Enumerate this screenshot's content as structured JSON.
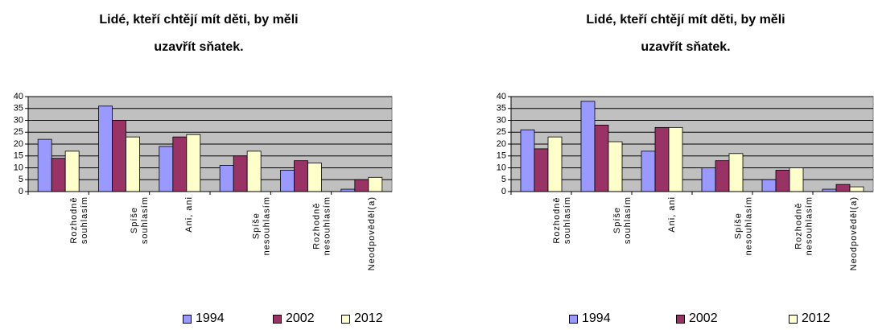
{
  "chart_data": [
    {
      "type": "bar",
      "title": "Lidé, kteří chtějí mít děti, by měli uzavřít sňatek.",
      "categories": [
        "Rozhodně\nsouhlasím",
        "Spíše\nsouhlasím",
        "Ani, ani",
        "Spíše\nnesouhlasím",
        "Rozhodně\nnesouhlasím",
        "Neodpověděl(a)"
      ],
      "series": [
        {
          "name": "1994",
          "color": "#9999ff",
          "values": [
            22,
            36,
            19,
            11,
            9,
            1
          ]
        },
        {
          "name": "2002",
          "color": "#993366",
          "values": [
            14,
            30,
            23,
            15,
            13,
            5
          ]
        },
        {
          "name": "2012",
          "color": "#ffffcc",
          "values": [
            17,
            23,
            24,
            17,
            12,
            6
          ]
        }
      ],
      "ylim": [
        0,
        40
      ],
      "yticks": [
        0,
        5,
        10,
        15,
        20,
        25,
        30,
        35,
        40
      ],
      "grid": true,
      "legend": "bottom"
    },
    {
      "type": "bar",
      "title": "Lidé, kteří chtějí mít děti, by měli uzavřít sňatek.",
      "categories": [
        "Rozhodně\nsouhlasím",
        "Spíše\nsouhlasím",
        "Ani, ani",
        "Spíše\nnesouhlasím",
        "Rozhodně\nnesouhlasím",
        "Neodpověděl(a)"
      ],
      "series": [
        {
          "name": "1994",
          "color": "#9999ff",
          "values": [
            26,
            38,
            17,
            10,
            5,
            1
          ]
        },
        {
          "name": "2002",
          "color": "#993366",
          "values": [
            18,
            28,
            27,
            13,
            9,
            3
          ]
        },
        {
          "name": "2012",
          "color": "#ffffcc",
          "values": [
            23,
            21,
            27,
            16,
            10,
            2
          ]
        }
      ],
      "ylim": [
        0,
        40
      ],
      "yticks": [
        0,
        5,
        10,
        15,
        20,
        25,
        30,
        35,
        40
      ],
      "grid": true,
      "legend": "bottom"
    }
  ]
}
